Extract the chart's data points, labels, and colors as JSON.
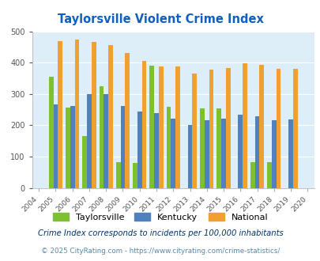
{
  "title": "Taylorsville Violent Crime Index",
  "years": [
    2004,
    2005,
    2006,
    2007,
    2008,
    2009,
    2010,
    2011,
    2012,
    2013,
    2014,
    2015,
    2016,
    2017,
    2018,
    2019,
    2020
  ],
  "taylorsville": [
    null,
    355,
    257,
    165,
    325,
    82,
    80,
    390,
    260,
    null,
    255,
    255,
    null,
    82,
    82,
    null,
    null
  ],
  "kentucky": [
    null,
    267,
    262,
    300,
    300,
    261,
    245,
    240,
    222,
    202,
    215,
    220,
    235,
    228,
    215,
    218,
    null
  ],
  "national": [
    null,
    469,
    473,
    467,
    455,
    432,
    405,
    387,
    387,
    366,
    378,
    383,
    398,
    394,
    380,
    380,
    null
  ],
  "bar_colors": {
    "taylorsville": "#7dc030",
    "kentucky": "#4f81bd",
    "national": "#f0a030"
  },
  "ylim": [
    0,
    500
  ],
  "yticks": [
    0,
    100,
    200,
    300,
    400,
    500
  ],
  "bg_color": "#deeef8",
  "grid_color": "#ffffff",
  "legend_labels": [
    "Taylorsville",
    "Kentucky",
    "National"
  ],
  "footnote1": "Crime Index corresponds to incidents per 100,000 inhabitants",
  "footnote2": "© 2025 CityRating.com - https://www.cityrating.com/crime-statistics/",
  "title_color": "#1060c0",
  "footnote1_color": "#003366",
  "footnote2_color": "#5588aa"
}
